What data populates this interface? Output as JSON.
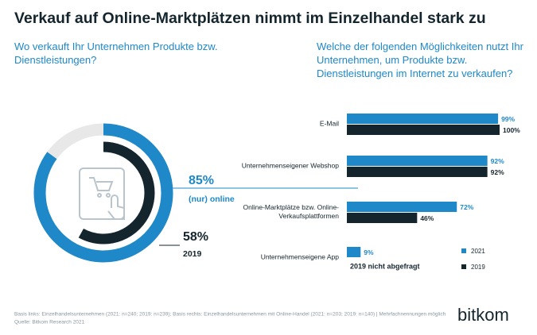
{
  "header": {
    "title": "Verkauf auf Online-Marktplätzen nimmt im Einzelhandel stark zu"
  },
  "chart_data": [
    {
      "type": "donut",
      "title": "Wo verkauft Ihr Unternehmen Produkte bzw. Dienstleistungen?",
      "series": [
        {
          "name": "(nur) online",
          "color": "#1e88c8",
          "values": [
            85
          ],
          "value_labels": [
            "85%"
          ]
        },
        {
          "name": "2019",
          "color": "#14252e",
          "values": [
            58
          ],
          "value_labels": [
            "58%"
          ]
        }
      ]
    },
    {
      "type": "bar",
      "title": "Welche der folgenden Möglichkeiten nutzt Ihr Unternehmen, um Produkte bzw. Dienstleistungen im Internet zu verkaufen?",
      "categories": [
        "E-Mail",
        "Unternehmenseigener Webshop",
        "Online-Marktplätze bzw. Online-Verkaufsplattformen",
        "Unternehmenseigene App"
      ],
      "series": [
        {
          "name": "2021",
          "color": "#1e88c8",
          "values": [
            99,
            92,
            72,
            9
          ],
          "value_labels": [
            "99%",
            "92%",
            "72%",
            "9%"
          ]
        },
        {
          "name": "2019",
          "color": "#14252e",
          "values": [
            100,
            92,
            46,
            null
          ],
          "value_labels": [
            "100%",
            "92%",
            "46%",
            null
          ]
        }
      ],
      "xlim": [
        0,
        100
      ],
      "annotations": [
        "2019 nicht abgefragt"
      ],
      "legend": "bottom-right"
    }
  ],
  "footer": {
    "notes": [
      "Basis links: Einzelhandelsunternehmen (2021: n=240; 2019: n=239); Basis rechts: Einzelhandelsunternehmen mit Online-Handel (2021: n=203; 2019: n=140) | Mehrfachnennungen möglich",
      "Quelle: Bitkom Research 2021"
    ],
    "logo": "bitkom"
  }
}
